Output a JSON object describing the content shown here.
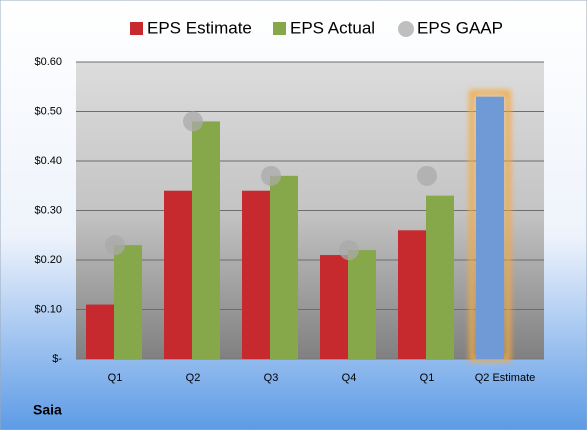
{
  "chart_data": {
    "type": "bar",
    "company": "Saia",
    "categories": [
      "Q1",
      "Q2",
      "Q3",
      "Q4",
      "Q1",
      "Q2 Estimate"
    ],
    "series": [
      {
        "name": "EPS Estimate",
        "color": "#c62a2f",
        "values": [
          0.11,
          0.34,
          0.34,
          0.21,
          0.26,
          0.53
        ],
        "highlight_index": 5,
        "highlight_color": "#6f9ad6",
        "highlight_glow": "#f5a940"
      },
      {
        "name": "EPS Actual",
        "color": "#86a84a",
        "values": [
          0.23,
          0.48,
          0.37,
          0.22,
          0.33,
          null
        ]
      },
      {
        "name": "EPS GAAP",
        "color": "#a9a9a9",
        "marker": "circle",
        "values": [
          0.23,
          0.48,
          0.37,
          0.22,
          0.37,
          null
        ]
      }
    ],
    "ylim": [
      0,
      0.6
    ],
    "yticks": [
      {
        "value": 0,
        "label": "$-"
      },
      {
        "value": 0.1,
        "label": "$0.10"
      },
      {
        "value": 0.2,
        "label": "$0.20"
      },
      {
        "value": 0.3,
        "label": "$0.30"
      },
      {
        "value": 0.4,
        "label": "$0.40"
      },
      {
        "value": 0.5,
        "label": "$0.50"
      },
      {
        "value": 0.6,
        "label": "$0.60"
      }
    ],
    "grid": true
  }
}
